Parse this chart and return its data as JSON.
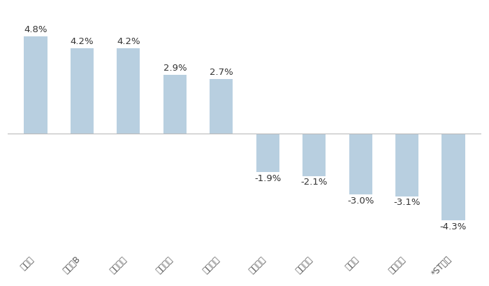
{
  "categories": [
    "来伊份",
    "古井贡B",
    "威龙股份",
    "海南椰岛",
    "古越龙山",
    "双汇发展",
    "燕京啤酒",
    "今世缘",
    "青岛食品",
    "*ST西发"
  ],
  "values": [
    4.8,
    4.2,
    4.2,
    2.9,
    2.7,
    -1.9,
    -2.1,
    -3.0,
    -3.1,
    -4.3
  ],
  "bar_color": "#b8cfe0",
  "label_color": "#333333",
  "background_color": "#ffffff",
  "figsize": [
    7.0,
    4.09
  ],
  "dpi": 100,
  "ylim": [
    -5.8,
    6.2
  ],
  "bar_width": 0.5,
  "label_fontsize": 9.5,
  "tick_fontsize": 8.5
}
